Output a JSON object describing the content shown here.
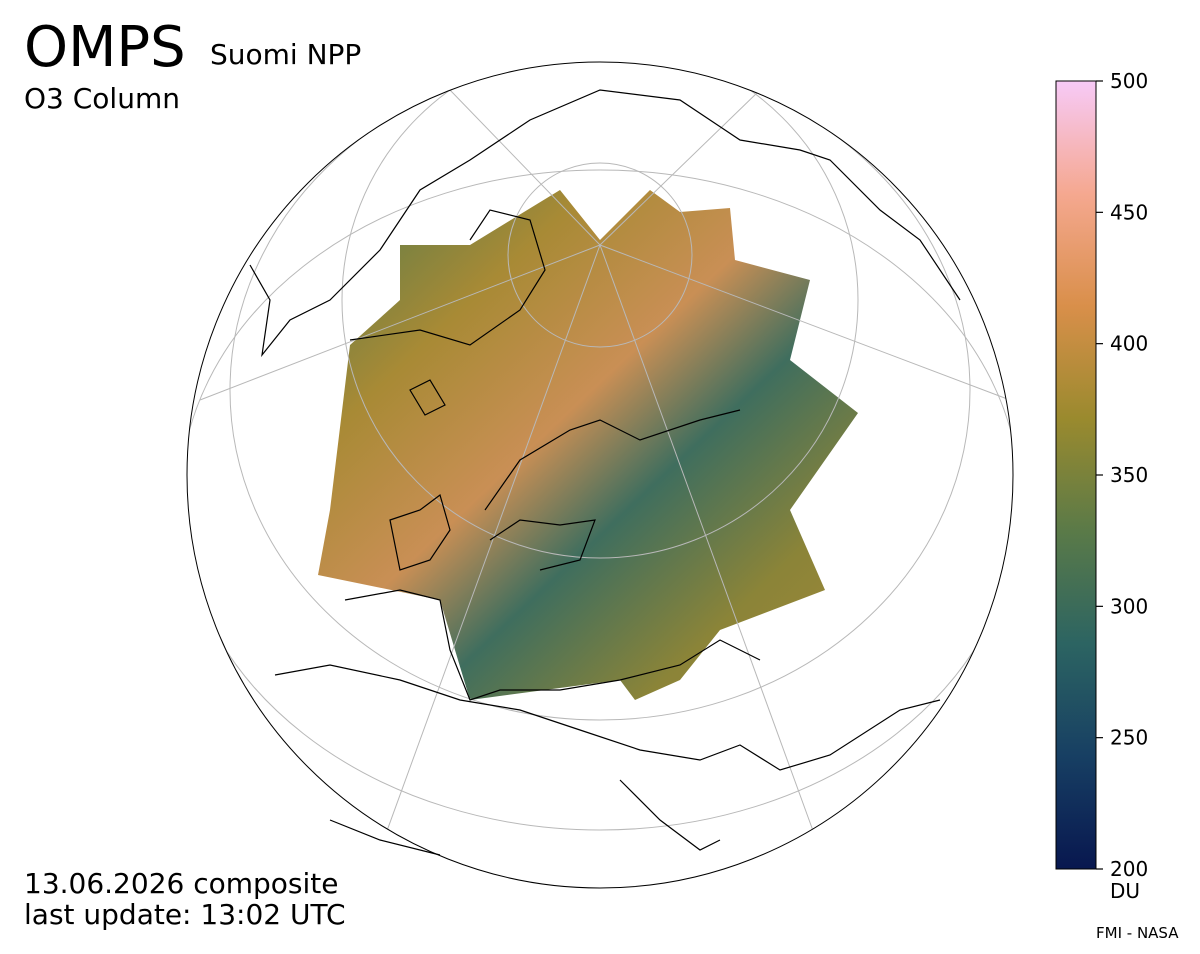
{
  "header": {
    "title": "OMPS",
    "satellite": "Suomi NPP",
    "product": "O3 Column"
  },
  "footer": {
    "date": "13.06.2026 composite",
    "update": "last update: 13:02 UTC",
    "credit": "FMI - NASA"
  },
  "colorbar": {
    "lim": [
      200,
      500
    ],
    "ticks": [
      200,
      250,
      300,
      350,
      400,
      450,
      500
    ],
    "unit": "DU",
    "colors": [
      "#08174f",
      "#173f63",
      "#2c6462",
      "#5a7a48",
      "#9a8a2e",
      "#d98f4a",
      "#f5a890",
      "#f7caf7"
    ]
  }
}
